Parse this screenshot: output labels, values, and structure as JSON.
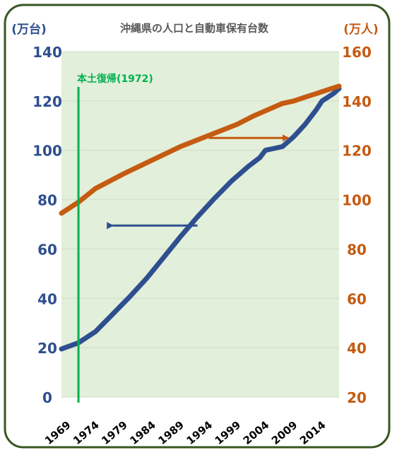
{
  "chart_data": {
    "type": "line",
    "title": "沖縄県の人口と自動車保有台数",
    "left_axis": {
      "unit_label": "(万台)",
      "ylim": [
        0,
        140
      ],
      "ticks": [
        0,
        20,
        40,
        60,
        80,
        100,
        120,
        140
      ],
      "color": "#2E4F8F"
    },
    "right_axis": {
      "unit_label": "(万人)",
      "ylim": [
        20,
        160
      ],
      "ticks": [
        20,
        40,
        60,
        80,
        100,
        120,
        140,
        160
      ],
      "color": "#C55A11"
    },
    "x_ticks": [
      "1969",
      "1974",
      "1979",
      "1984",
      "1989",
      "1994",
      "1999",
      "2004",
      "2009",
      "2014"
    ],
    "xlim": [
      1969,
      2018
    ],
    "grid": true,
    "plot_background": "#E2EFDA",
    "frame_color": "#375623",
    "series": [
      {
        "axis": "left",
        "color": "#2E4F8F",
        "x": [
          1969,
          1972,
          1975,
          1978,
          1981,
          1984,
          1987,
          1990,
          1993,
          1996,
          1999,
          2002,
          2004,
          2005,
          2006,
          2008,
          2010,
          2012,
          2014,
          2015,
          2017,
          2018
        ],
        "values": [
          19.5,
          22.0,
          26.5,
          33.5,
          40.5,
          48.0,
          56.5,
          65.0,
          73.0,
          80.5,
          87.5,
          93.5,
          97.0,
          100.0,
          100.5,
          101.5,
          105.5,
          110.5,
          116.5,
          120.0,
          123.0,
          125.0
        ]
      },
      {
        "axis": "right",
        "color": "#C55A11",
        "x": [
          1969,
          1972,
          1975,
          1980,
          1985,
          1990,
          1995,
          2000,
          2003,
          2006,
          2008,
          2010,
          2012,
          2014,
          2016,
          2018
        ],
        "values": [
          94.5,
          99.0,
          104.5,
          110.5,
          116.0,
          121.5,
          126.0,
          130.5,
          134.0,
          137.0,
          139.0,
          140.0,
          141.5,
          143.0,
          144.5,
          146.0
        ]
      }
    ],
    "annotations": {
      "vline": {
        "x": 1972,
        "label": "本土復帰(1972)",
        "color": "#00B050"
      },
      "arrows": [
        {
          "series_axis": "left",
          "from": [
            1993,
            69.5
          ],
          "to": [
            1978,
            69.5
          ]
        },
        {
          "series_axis": "right",
          "from": [
            1995,
            125
          ],
          "to": [
            2009,
            125
          ]
        }
      ]
    }
  }
}
